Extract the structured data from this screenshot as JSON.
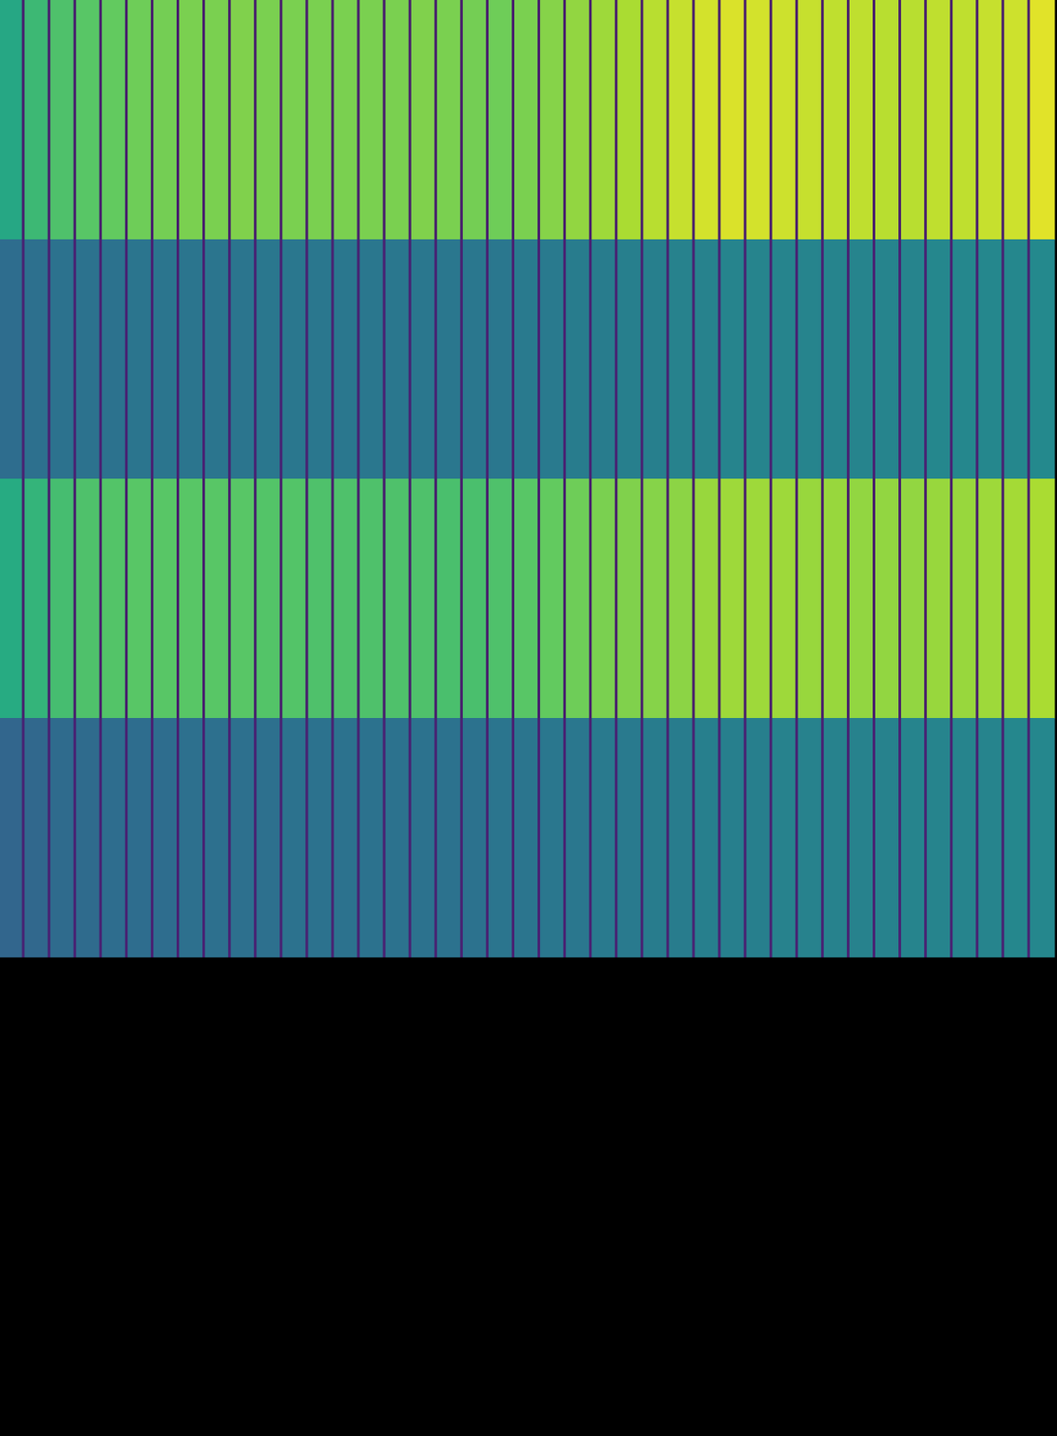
{
  "chart_data": {
    "type": "heatmap",
    "tick_labels": false,
    "zlim": [
      0,
      1
    ],
    "cells": [
      [
        0.6,
        0.68,
        0.72,
        0.74,
        0.76,
        0.78,
        0.79,
        0.8,
        0.8,
        0.81,
        0.8,
        0.8,
        0.8,
        0.8,
        0.8,
        0.8,
        0.81,
        0.8,
        0.79,
        0.78,
        0.8,
        0.82,
        0.84,
        0.86,
        0.88,
        0.9,
        0.92,
        0.94,
        0.95,
        0.94,
        0.93,
        0.92,
        0.91,
        0.91,
        0.9,
        0.9,
        0.91,
        0.91,
        0.92,
        0.93,
        0.96
      ],
      [
        0.36,
        0.37,
        0.38,
        0.38,
        0.38,
        0.39,
        0.39,
        0.39,
        0.39,
        0.39,
        0.4,
        0.4,
        0.4,
        0.4,
        0.4,
        0.4,
        0.4,
        0.4,
        0.4,
        0.4,
        0.41,
        0.41,
        0.42,
        0.42,
        0.43,
        0.43,
        0.44,
        0.44,
        0.45,
        0.45,
        0.45,
        0.45,
        0.45,
        0.45,
        0.45,
        0.45,
        0.46,
        0.46,
        0.46,
        0.46,
        0.47
      ],
      [
        0.62,
        0.66,
        0.7,
        0.72,
        0.73,
        0.74,
        0.74,
        0.74,
        0.74,
        0.74,
        0.73,
        0.73,
        0.72,
        0.72,
        0.72,
        0.72,
        0.72,
        0.71,
        0.71,
        0.72,
        0.74,
        0.76,
        0.78,
        0.8,
        0.81,
        0.82,
        0.83,
        0.85,
        0.86,
        0.86,
        0.86,
        0.85,
        0.85,
        0.84,
        0.84,
        0.84,
        0.85,
        0.85,
        0.86,
        0.87,
        0.88
      ],
      [
        0.33,
        0.34,
        0.35,
        0.35,
        0.36,
        0.36,
        0.36,
        0.37,
        0.37,
        0.37,
        0.37,
        0.38,
        0.38,
        0.38,
        0.38,
        0.38,
        0.38,
        0.38,
        0.38,
        0.39,
        0.39,
        0.4,
        0.4,
        0.41,
        0.41,
        0.42,
        0.42,
        0.43,
        0.43,
        0.43,
        0.44,
        0.44,
        0.44,
        0.44,
        0.44,
        0.45,
        0.45,
        0.45,
        0.45,
        0.46,
        0.46
      ]
    ],
    "divider_values": [
      0.1,
      0.12,
      0.1,
      0.12
    ]
  }
}
